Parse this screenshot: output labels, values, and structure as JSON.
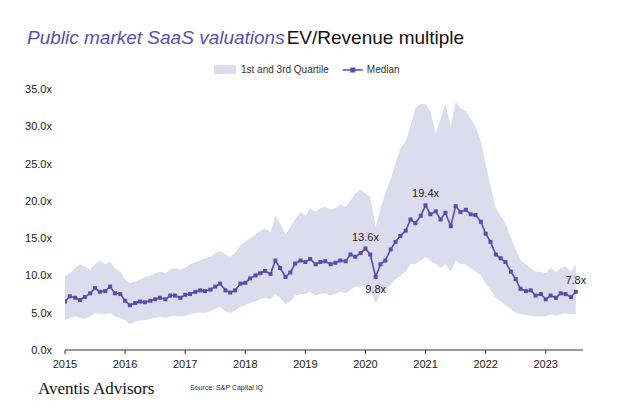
{
  "chart_data": {
    "type": "line",
    "title": "Public market SaaS valuations",
    "subtitle": "EV/Revenue multiple",
    "source": "Source: S&P Capital IQ",
    "brand": "Aventis Advisors",
    "legend": "top",
    "grid": false,
    "xlim": [
      2015,
      2023.62
    ],
    "xticks": [
      2015,
      2016,
      2017,
      2018,
      2019,
      2020,
      2021,
      2022,
      2023
    ],
    "ylim": [
      0,
      35
    ],
    "yticks": [
      {
        "value": 0,
        "label": "0.0x"
      },
      {
        "value": 5,
        "label": "5.0x"
      },
      {
        "value": 10,
        "label": "10.0x"
      },
      {
        "value": 15,
        "label": "15.0x"
      },
      {
        "value": 20,
        "label": "20.0x"
      },
      {
        "value": 25,
        "label": "25.0x"
      },
      {
        "value": 30,
        "label": "30.0x"
      },
      {
        "value": 35,
        "label": "35.0x"
      }
    ],
    "x": [
      2015,
      2015.08,
      2015.17,
      2015.25,
      2015.33,
      2015.42,
      2015.5,
      2015.58,
      2015.67,
      2015.75,
      2015.83,
      2015.92,
      2016,
      2016.08,
      2016.17,
      2016.25,
      2016.33,
      2016.42,
      2016.5,
      2016.58,
      2016.67,
      2016.75,
      2016.83,
      2016.92,
      2017,
      2017.08,
      2017.17,
      2017.25,
      2017.33,
      2017.42,
      2017.5,
      2017.58,
      2017.67,
      2017.75,
      2017.83,
      2017.92,
      2018,
      2018.08,
      2018.17,
      2018.25,
      2018.33,
      2018.42,
      2018.5,
      2018.58,
      2018.67,
      2018.75,
      2018.83,
      2018.92,
      2019,
      2019.08,
      2019.17,
      2019.25,
      2019.33,
      2019.42,
      2019.5,
      2019.58,
      2019.67,
      2019.75,
      2019.83,
      2019.92,
      2020,
      2020.08,
      2020.17,
      2020.25,
      2020.33,
      2020.42,
      2020.5,
      2020.58,
      2020.67,
      2020.75,
      2020.83,
      2020.92,
      2021,
      2021.08,
      2021.17,
      2021.25,
      2021.33,
      2021.42,
      2021.5,
      2021.58,
      2021.67,
      2021.75,
      2021.83,
      2021.92,
      2022,
      2022.08,
      2022.17,
      2022.25,
      2022.33,
      2022.42,
      2022.5,
      2022.58,
      2022.67,
      2022.75,
      2022.83,
      2022.92,
      2023,
      2023.08,
      2023.17,
      2023.25,
      2023.33,
      2023.42,
      2023.5
    ],
    "series": [
      {
        "name": "1st and 3rd Quartile",
        "type": "band",
        "color": "#dddcef",
        "low": [
          4.0,
          4.3,
          4.5,
          4.3,
          4.2,
          4.5,
          5.0,
          4.8,
          4.8,
          5.0,
          4.5,
          4.3,
          4.0,
          3.5,
          3.8,
          4.0,
          4.0,
          4.2,
          4.3,
          4.5,
          4.3,
          4.5,
          4.6,
          4.5,
          4.6,
          4.8,
          5.0,
          5.0,
          5.0,
          5.2,
          5.5,
          5.8,
          5.2,
          5.0,
          5.3,
          5.8,
          6.0,
          6.3,
          6.5,
          6.8,
          7.0,
          6.8,
          7.5,
          7.0,
          6.2,
          6.5,
          7.3,
          7.5,
          7.5,
          7.8,
          7.3,
          7.5,
          7.6,
          7.3,
          7.5,
          7.8,
          7.6,
          8.0,
          8.5,
          8.5,
          8.8,
          8.0,
          6.3,
          7.5,
          8.0,
          8.8,
          9.5,
          10.0,
          10.5,
          11.5,
          11.5,
          12.0,
          12.5,
          12.0,
          11.5,
          11.0,
          11.5,
          10.5,
          12.0,
          11.5,
          11.5,
          11.0,
          10.5,
          10.0,
          9.0,
          8.0,
          7.0,
          6.5,
          6.0,
          5.5,
          5.0,
          4.8,
          4.7,
          4.6,
          4.5,
          4.5,
          4.5,
          4.8,
          4.6,
          4.8,
          4.9,
          4.8,
          4.8
        ],
        "high": [
          10.0,
          10.3,
          11.0,
          11.5,
          11.2,
          10.8,
          11.5,
          12.0,
          11.5,
          11.8,
          11.0,
          10.5,
          9.5,
          9.0,
          9.2,
          9.5,
          9.8,
          10.0,
          10.3,
          10.5,
          10.3,
          10.8,
          11.0,
          10.8,
          11.0,
          11.5,
          11.8,
          12.0,
          12.3,
          12.5,
          13.0,
          13.3,
          12.8,
          12.5,
          13.0,
          14.0,
          14.5,
          15.0,
          15.5,
          16.0,
          16.3,
          15.8,
          18.0,
          17.0,
          15.5,
          16.5,
          17.5,
          18.5,
          18.0,
          19.0,
          18.5,
          19.0,
          19.2,
          18.8,
          19.0,
          19.5,
          19.2,
          20.0,
          21.0,
          21.5,
          21.0,
          20.5,
          16.5,
          19.0,
          21.0,
          23.0,
          25.0,
          27.0,
          28.0,
          30.0,
          32.5,
          33.0,
          33.0,
          32.0,
          29.0,
          31.0,
          33.0,
          30.0,
          33.3,
          32.5,
          32.0,
          31.0,
          30.0,
          28.0,
          25.0,
          22.0,
          19.0,
          18.0,
          17.0,
          15.0,
          13.5,
          12.0,
          11.5,
          11.0,
          10.5,
          10.5,
          10.3,
          11.0,
          10.5,
          11.0,
          11.2,
          10.5,
          11.5
        ]
      },
      {
        "name": "Median",
        "type": "line",
        "color": "#5b4bab",
        "marker": "square",
        "values": [
          6.5,
          7.2,
          7.0,
          6.7,
          7.1,
          7.6,
          8.3,
          7.8,
          7.9,
          8.5,
          7.6,
          7.5,
          6.6,
          6.0,
          6.3,
          6.5,
          6.4,
          6.6,
          6.8,
          7.0,
          6.8,
          7.3,
          7.3,
          7.0,
          7.4,
          7.5,
          7.8,
          8.0,
          7.9,
          8.1,
          8.5,
          8.9,
          8.0,
          7.7,
          8.0,
          8.9,
          9.0,
          9.6,
          10.0,
          10.3,
          10.6,
          10.2,
          12.0,
          11.0,
          9.8,
          10.4,
          11.6,
          12.0,
          11.8,
          12.2,
          11.5,
          11.8,
          11.9,
          11.5,
          11.7,
          12.0,
          11.9,
          12.8,
          12.5,
          13.0,
          13.6,
          12.8,
          9.8,
          11.5,
          12.0,
          13.5,
          14.5,
          15.3,
          16.0,
          17.5,
          17.0,
          18.0,
          19.4,
          18.2,
          18.6,
          17.5,
          18.4,
          16.6,
          19.3,
          18.5,
          18.8,
          18.2,
          18.1,
          17.2,
          15.6,
          14.5,
          12.8,
          12.3,
          11.8,
          10.5,
          9.5,
          8.2,
          7.9,
          8.0,
          7.3,
          7.5,
          6.8,
          7.3,
          7.0,
          7.6,
          7.5,
          7.1,
          7.8
        ]
      }
    ],
    "annotations": [
      {
        "text": "13.6x",
        "x": 2020,
        "y": 13.6
      },
      {
        "text": "9.8x",
        "x": 2020.17,
        "y": 9.8
      },
      {
        "text": "19.4x",
        "x": 2021,
        "y": 19.4
      },
      {
        "text": "7.8x",
        "x": 2023.5,
        "y": 7.8
      }
    ]
  }
}
